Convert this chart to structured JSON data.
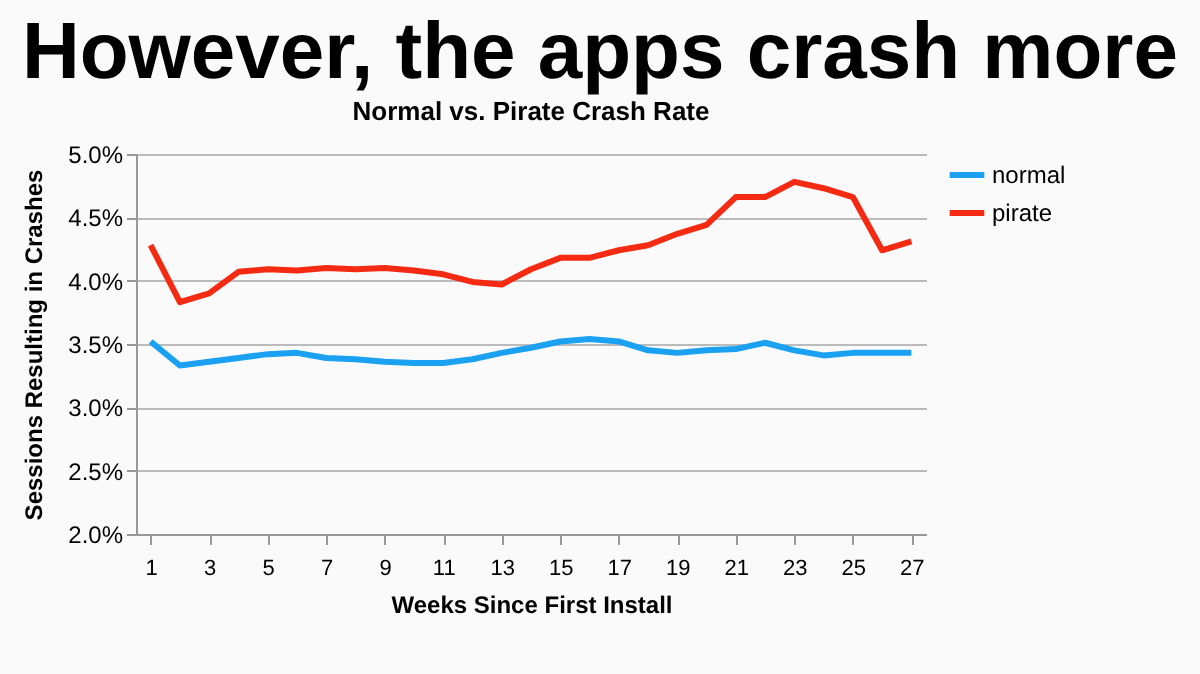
{
  "chart_data": {
    "type": "line",
    "title": "However, the apps crash more",
    "subtitle": "Normal vs. Pirate Crash Rate",
    "xlabel": "Weeks Since First Install",
    "ylabel": "Sessions Resulting in Crashes",
    "x": [
      1,
      2,
      3,
      4,
      5,
      6,
      7,
      8,
      9,
      10,
      11,
      12,
      13,
      14,
      15,
      16,
      17,
      18,
      19,
      20,
      21,
      22,
      23,
      24,
      25,
      26,
      27
    ],
    "xlim": [
      0.5,
      27.5
    ],
    "xticks": [
      1,
      3,
      5,
      7,
      9,
      11,
      13,
      15,
      17,
      19,
      21,
      23,
      25,
      27
    ],
    "series": [
      {
        "name": "normal",
        "color": "#1ba1f2",
        "values": [
          3.52,
          3.33,
          3.36,
          3.39,
          3.42,
          3.43,
          3.39,
          3.38,
          3.36,
          3.35,
          3.35,
          3.38,
          3.43,
          3.47,
          3.52,
          3.54,
          3.52,
          3.45,
          3.43,
          3.45,
          3.46,
          3.51,
          3.45,
          3.41,
          3.43,
          3.43,
          3.43
        ]
      },
      {
        "name": "pirate",
        "color": "#f42b12",
        "values": [
          4.28,
          3.83,
          3.9,
          4.07,
          4.09,
          4.08,
          4.1,
          4.09,
          4.1,
          4.08,
          4.05,
          3.99,
          3.97,
          4.09,
          4.18,
          4.18,
          4.24,
          4.28,
          4.37,
          4.44,
          4.66,
          4.66,
          4.78,
          4.73,
          4.66,
          4.24,
          4.31
        ]
      }
    ],
    "ylim": [
      2.0,
      5.0
    ],
    "yticks": [
      {
        "value": 2.0,
        "label": "2.0%"
      },
      {
        "value": 2.5,
        "label": "2.5%"
      },
      {
        "value": 3.0,
        "label": "3.0%"
      },
      {
        "value": 3.5,
        "label": "3.5%"
      },
      {
        "value": 4.0,
        "label": "4.0%"
      },
      {
        "value": 4.5,
        "label": "4.5%"
      },
      {
        "value": 5.0,
        "label": "5.0%"
      }
    ],
    "grid": "y",
    "legend": "right",
    "marker": "none",
    "line_style": "solid"
  }
}
